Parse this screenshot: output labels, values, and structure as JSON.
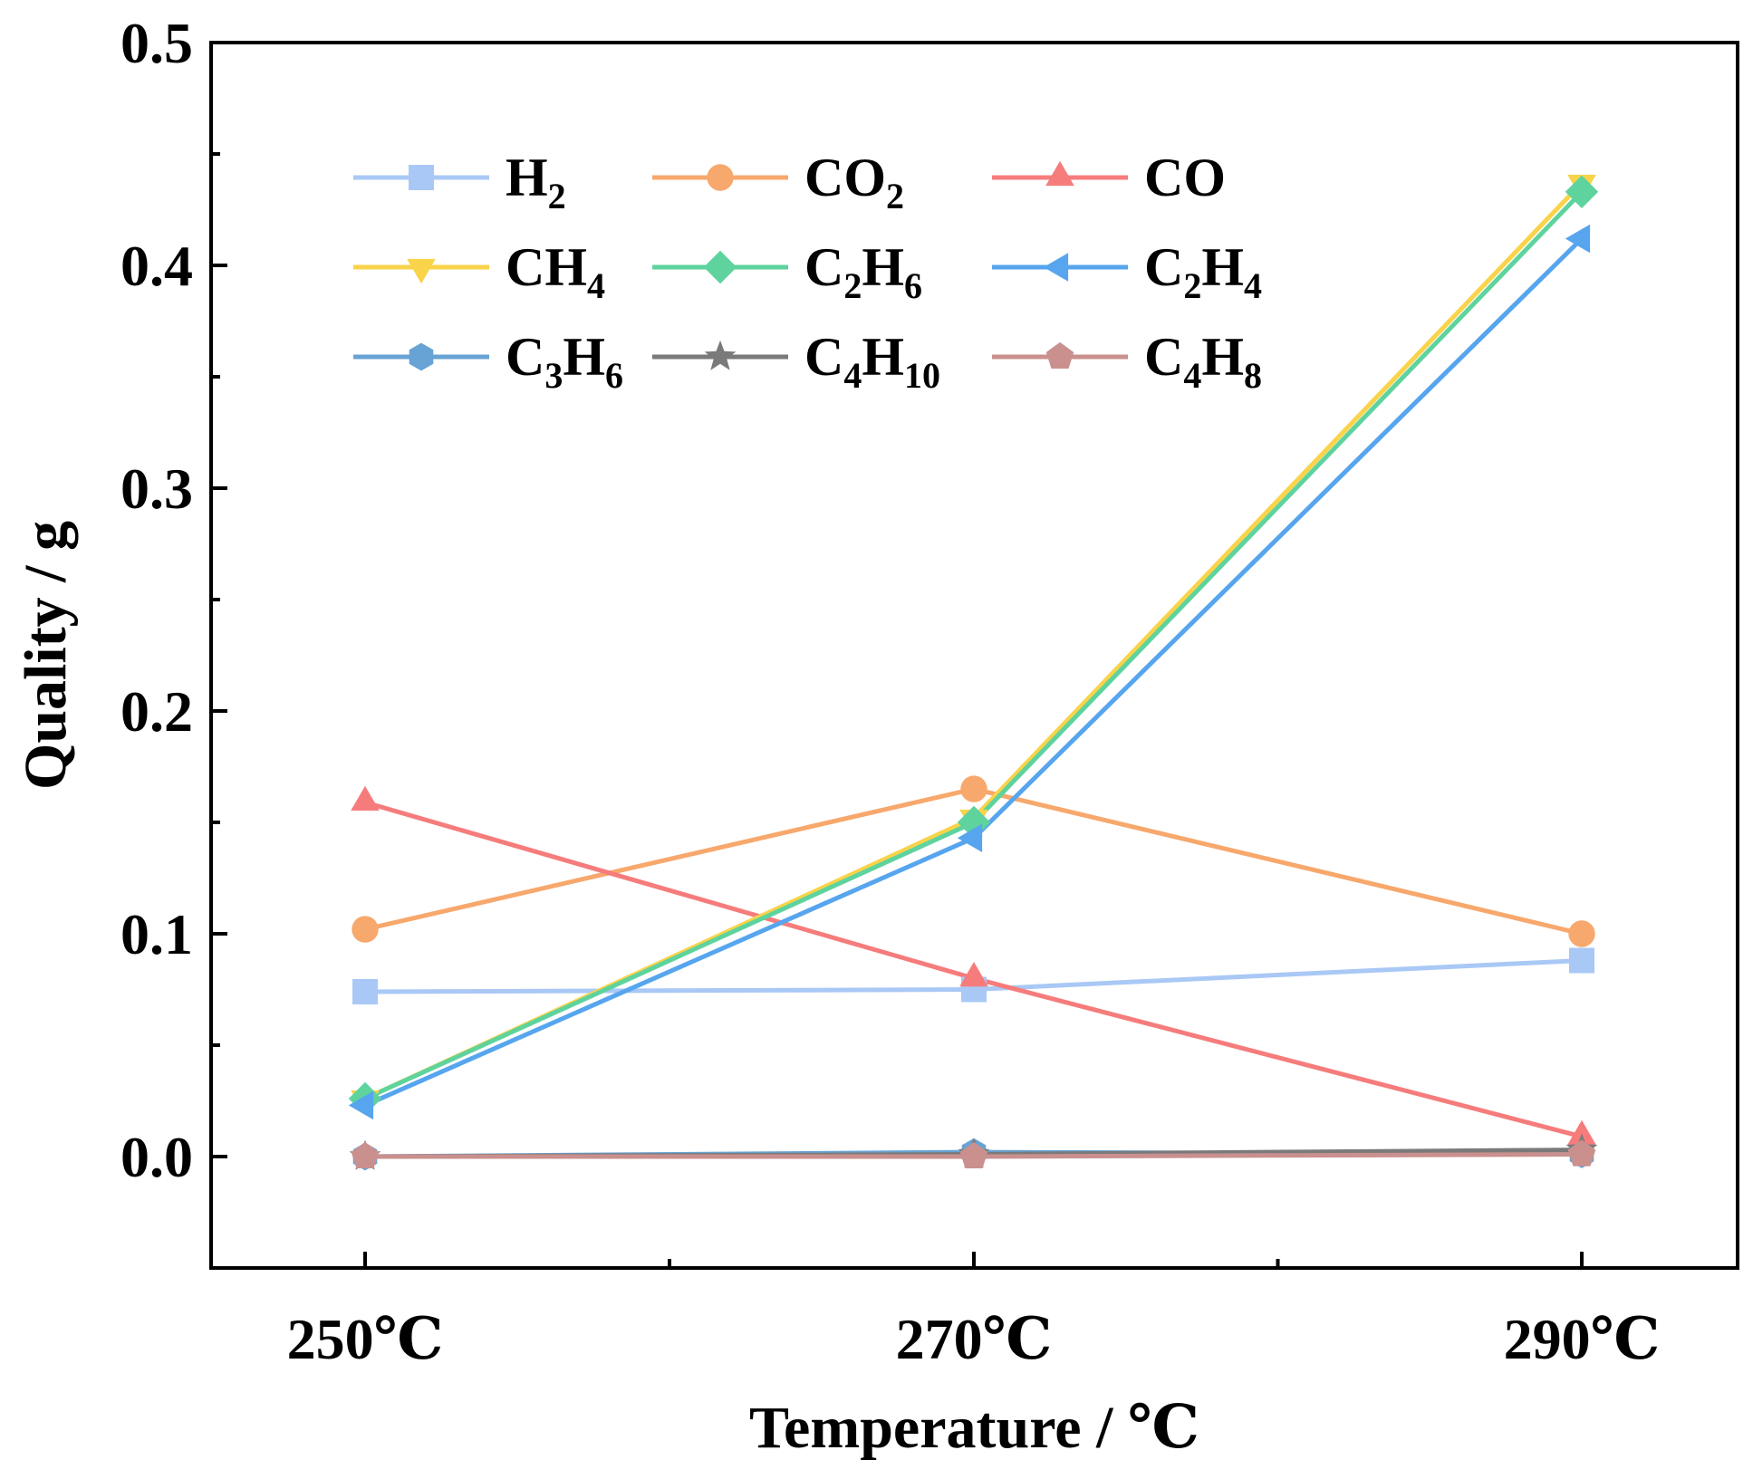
{
  "chart_data": {
    "type": "line",
    "title": "",
    "xlabel": "Temperature / ℃",
    "ylabel": "Quality / g",
    "categories": [
      "250℃",
      "270℃",
      "290℃"
    ],
    "ylim": [
      -0.05,
      0.5
    ],
    "yticks": [
      "0.0",
      "0.1",
      "0.2",
      "0.3",
      "0.4",
      "0.5"
    ],
    "legend_position": "top-left, 3 columns",
    "series": [
      {
        "name": "H2",
        "label_base": "H",
        "label_parts": [
          [
            "H",
            ""
          ],
          [
            "2",
            "sub"
          ]
        ],
        "marker": "square",
        "color": "#a9c8f5",
        "values": [
          0.074,
          0.075,
          0.088
        ]
      },
      {
        "name": "CO2",
        "label_parts": [
          [
            "CO",
            ""
          ],
          [
            "2",
            "sub"
          ]
        ],
        "marker": "circle",
        "color": "#f7a86c",
        "values": [
          0.102,
          0.165,
          0.1
        ]
      },
      {
        "name": "CO",
        "label_parts": [
          [
            "CO",
            ""
          ]
        ],
        "marker": "triangle-up",
        "color": "#f67c7c",
        "values": [
          0.159,
          0.08,
          0.009
        ]
      },
      {
        "name": "CH4",
        "label_parts": [
          [
            "CH",
            ""
          ],
          [
            "4",
            "sub"
          ]
        ],
        "marker": "triangle-down",
        "color": "#f9d34a",
        "values": [
          0.026,
          0.152,
          0.437
        ]
      },
      {
        "name": "C2H6",
        "label_parts": [
          [
            "C",
            ""
          ],
          [
            "2",
            "sub"
          ],
          [
            "H",
            ""
          ],
          [
            "6",
            "sub"
          ]
        ],
        "marker": "diamond",
        "color": "#5ed39e",
        "values": [
          0.026,
          0.15,
          0.433
        ]
      },
      {
        "name": "C2H4",
        "label_parts": [
          [
            "C",
            ""
          ],
          [
            "2",
            "sub"
          ],
          [
            "H",
            ""
          ],
          [
            "4",
            "sub"
          ]
        ],
        "marker": "triangle-left",
        "color": "#56a5ee",
        "values": [
          0.023,
          0.143,
          0.412
        ]
      },
      {
        "name": "C3H6",
        "label_parts": [
          [
            "C",
            ""
          ],
          [
            "3",
            "sub"
          ],
          [
            "H",
            ""
          ],
          [
            "6",
            "sub"
          ]
        ],
        "marker": "hexagon",
        "color": "#67a3d4",
        "values": [
          0.0,
          0.002,
          0.001
        ]
      },
      {
        "name": "C4H10",
        "label_parts": [
          [
            "C",
            ""
          ],
          [
            "4",
            "sub"
          ],
          [
            "H",
            ""
          ],
          [
            "10",
            "sub"
          ]
        ],
        "marker": "star",
        "color": "#7a7a7a",
        "values": [
          0.0,
          0.001,
          0.003
        ]
      },
      {
        "name": "C4H8",
        "label_parts": [
          [
            "C",
            ""
          ],
          [
            "4",
            "sub"
          ],
          [
            "H",
            ""
          ],
          [
            "8",
            "sub"
          ]
        ],
        "marker": "pentagon",
        "color": "#c9908e",
        "values": [
          0.0,
          0.0,
          0.001
        ]
      }
    ]
  }
}
